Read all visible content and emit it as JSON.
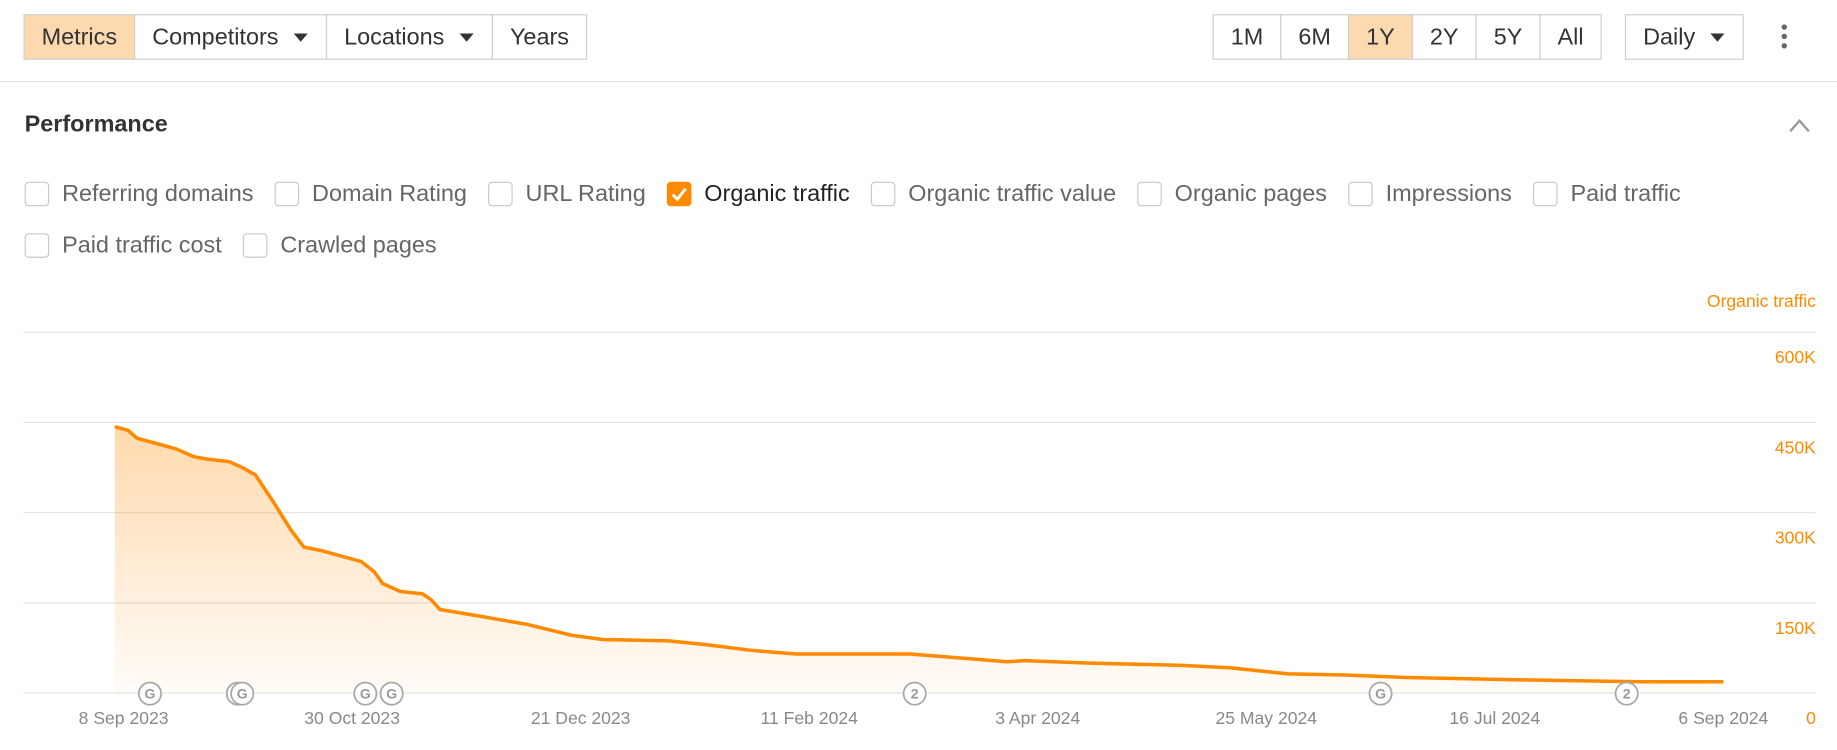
{
  "toolbar": {
    "left": [
      {
        "label": "Metrics",
        "active": true
      },
      {
        "label": "Competitors",
        "dropdown": true
      },
      {
        "label": "Locations",
        "dropdown": true
      },
      {
        "label": "Years"
      }
    ],
    "periods": [
      {
        "label": "1M"
      },
      {
        "label": "6M"
      },
      {
        "label": "1Y",
        "active": true
      },
      {
        "label": "2Y"
      },
      {
        "label": "5Y"
      },
      {
        "label": "All"
      }
    ],
    "interval": {
      "label": "Daily",
      "dropdown": true
    }
  },
  "panel": {
    "title": "Performance",
    "metrics": [
      {
        "label": "Referring domains",
        "checked": false
      },
      {
        "label": "Domain Rating",
        "checked": false
      },
      {
        "label": "URL Rating",
        "checked": false
      },
      {
        "label": "Organic traffic",
        "checked": true
      },
      {
        "label": "Organic traffic value",
        "checked": false
      },
      {
        "label": "Organic pages",
        "checked": false
      },
      {
        "label": "Impressions",
        "checked": false
      },
      {
        "label": "Paid traffic",
        "checked": false
      },
      {
        "label": "Paid traffic cost",
        "checked": false
      },
      {
        "label": "Crawled pages",
        "checked": false
      }
    ]
  },
  "chart_data": {
    "type": "area",
    "x": [
      "2023-09-06",
      "2023-09-09",
      "2023-09-11",
      "2023-09-16",
      "2023-09-20",
      "2023-09-24",
      "2023-09-27",
      "2023-10-02",
      "2023-10-05",
      "2023-10-08",
      "2023-10-12",
      "2023-10-16",
      "2023-10-19",
      "2023-10-23",
      "2023-10-27",
      "2023-11-01",
      "2023-11-04",
      "2023-11-06",
      "2023-11-10",
      "2023-11-15",
      "2023-11-17",
      "2023-11-19",
      "2023-11-28",
      "2023-12-09",
      "2023-12-19",
      "2023-12-26",
      "2024-01-10",
      "2024-01-18",
      "2024-01-29",
      "2024-02-08",
      "2024-02-29",
      "2024-03-05",
      "2024-03-19",
      "2024-03-27",
      "2024-03-31",
      "2024-04-14",
      "2024-05-06",
      "2024-05-17",
      "2024-05-30",
      "2024-06-12",
      "2024-06-26",
      "2024-07-22",
      "2024-08-18",
      "2024-08-31",
      "2024-09-06"
    ],
    "series": [
      {
        "name": "Organic traffic",
        "color": "#ff8a00",
        "values": [
          442000,
          436000,
          423000,
          413000,
          405000,
          392000,
          388000,
          384000,
          374000,
          362000,
          318000,
          271000,
          242000,
          236000,
          228000,
          218000,
          201000,
          181000,
          168000,
          164000,
          154000,
          138000,
          127000,
          113000,
          95000,
          88000,
          86000,
          80000,
          70000,
          64000,
          64000,
          64000,
          56000,
          51000,
          53000,
          49000,
          45000,
          41000,
          31000,
          29000,
          25000,
          21000,
          18000,
          18000,
          18000
        ]
      }
    ],
    "xlim": [
      "2023-09-06",
      "2024-09-06"
    ],
    "xticks": [
      {
        "value": "2023-09-08",
        "label": "8 Sep 2023"
      },
      {
        "value": "2023-10-30",
        "label": "30 Oct 2023"
      },
      {
        "value": "2023-12-21",
        "label": "21 Dec 2023"
      },
      {
        "value": "2024-02-11",
        "label": "11 Feb 2024"
      },
      {
        "value": "2024-04-03",
        "label": "3 Apr 2024"
      },
      {
        "value": "2024-05-25",
        "label": "25 May 2024"
      },
      {
        "value": "2024-07-16",
        "label": "16 Jul 2024"
      },
      {
        "value": "2024-09-06",
        "label": "6 Sep 2024"
      }
    ],
    "ylim": [
      0,
      600000
    ],
    "yticks": [
      0,
      {
        "value": 150000,
        "label": "150K"
      },
      {
        "value": 300000,
        "label": "300K"
      },
      {
        "value": 450000,
        "label": "450K"
      },
      {
        "value": 600000,
        "label": "600K"
      }
    ],
    "grid": true,
    "annotations": [
      {
        "date": "2023-09-14",
        "label": "G"
      },
      {
        "date": "2023-10-04",
        "label": "G"
      },
      {
        "date": "2023-10-05",
        "label": "G"
      },
      {
        "date": "2023-11-02",
        "label": "G"
      },
      {
        "date": "2023-11-08",
        "label": "G"
      },
      {
        "date": "2024-03-06",
        "label": "2"
      },
      {
        "date": "2024-06-20",
        "label": "G"
      },
      {
        "date": "2024-08-15",
        "label": "2"
      }
    ]
  }
}
